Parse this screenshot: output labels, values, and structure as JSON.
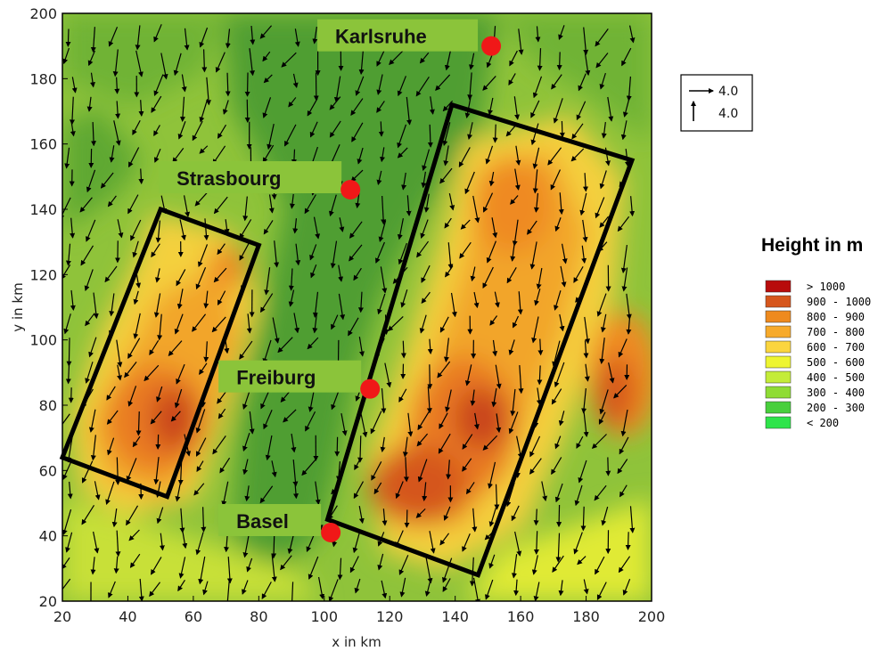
{
  "axes": {
    "x_label": "x in km",
    "y_label": "y in km",
    "x_ticks": [
      "20",
      "40",
      "60",
      "80",
      "100",
      "120",
      "140",
      "160",
      "180",
      "200"
    ],
    "y_ticks": [
      "20",
      "40",
      "60",
      "80",
      "100",
      "120",
      "140",
      "160",
      "180",
      "200"
    ],
    "x_range": [
      20,
      200
    ],
    "y_range": [
      20,
      200
    ]
  },
  "cities": [
    {
      "name": "Karlsruhe",
      "x": 151,
      "y": 190
    },
    {
      "name": "Strasbourg",
      "x": 108,
      "y": 146
    },
    {
      "name": "Freiburg",
      "x": 114,
      "y": 85
    },
    {
      "name": "Basel",
      "x": 102,
      "y": 41
    }
  ],
  "regions": [
    {
      "name": "vosges-box",
      "corners": [
        [
          50,
          140
        ],
        [
          80,
          129
        ],
        [
          52,
          52
        ],
        [
          20,
          64
        ]
      ]
    },
    {
      "name": "black-forest-box",
      "corners": [
        [
          139,
          172
        ],
        [
          194,
          155
        ],
        [
          147,
          28
        ],
        [
          101,
          45
        ]
      ]
    }
  ],
  "reference_vectors": {
    "horizontal": "4.0",
    "vertical": "4.0"
  },
  "legend": {
    "title": "Height in m",
    "items": [
      {
        "label": ">    1000",
        "color": "#b80c0c"
      },
      {
        "label": "900 - 1000",
        "color": "#d6561c"
      },
      {
        "label": "800 -  900",
        "color": "#ee8a1e"
      },
      {
        "label": "700 -  800",
        "color": "#f7aa2a"
      },
      {
        "label": "600 -  700",
        "color": "#fbd53e"
      },
      {
        "label": "500 -  600",
        "color": "#eef530"
      },
      {
        "label": "400 -  500",
        "color": "#c4ec38"
      },
      {
        "label": "300 -  400",
        "color": "#8fdc34"
      },
      {
        "label": "200 -  300",
        "color": "#48cf3c"
      },
      {
        "label": "<    200",
        "color": "#2ee44a"
      }
    ]
  }
}
